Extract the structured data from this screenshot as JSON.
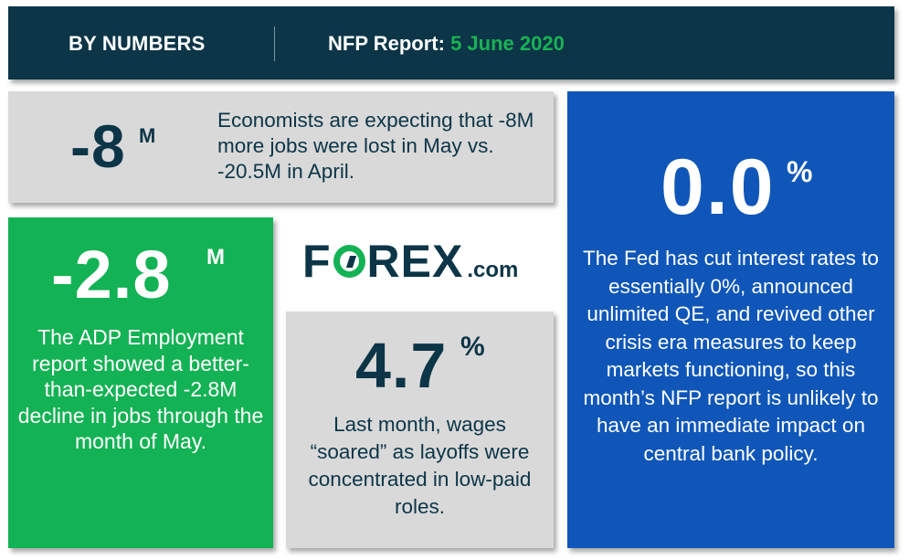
{
  "header": {
    "left_label": "BY NUMBERS",
    "report_label": "NFP Report:",
    "report_date": "5 June 2020"
  },
  "stats": {
    "jobs_expected": {
      "value": "-8",
      "unit": "M",
      "description": "Economists are expecting that -8M more jobs were lost in May vs. -20.5M in April."
    },
    "adp": {
      "value": "-2.8",
      "unit": "M",
      "description": "The ADP Employment report showed a better-than-expected -2.8M decline in jobs through the month of May."
    },
    "wages": {
      "value": "4.7",
      "unit": "%",
      "description": "Last month, wages “soared” as layoffs were concentrated in low-paid roles."
    },
    "fed_rate": {
      "value": "0.0",
      "unit": "%",
      "description": "The Fed has cut interest rates to essentially 0%, announced unlimited QE, and revived other crisis era measures to keep markets functioning, so this month’s NFP report is unlikely to have an immediate impact on central bank policy."
    }
  },
  "logo": {
    "part1": "F",
    "part2": "REX",
    "suffix": ".com"
  },
  "colors": {
    "navy": "#0c3547",
    "green": "#13b254",
    "blue": "#0f56b8",
    "grey": "#d9d9d9"
  }
}
